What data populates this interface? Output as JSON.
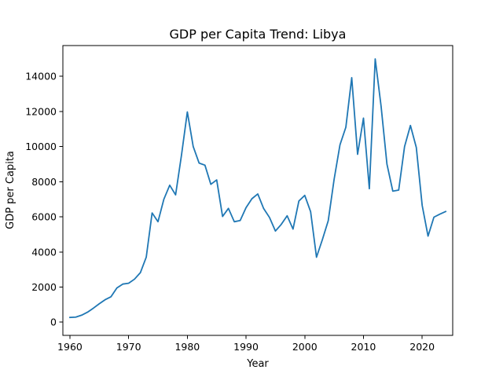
{
  "chart_data": {
    "type": "line",
    "title": "GDP per Capita Trend: Libya",
    "xlabel": "Year",
    "ylabel": "GDP per Capita",
    "xlim": [
      1958.8,
      2025.2
    ],
    "ylim": [
      -750,
      15750
    ],
    "xticks": [
      1960,
      1970,
      1980,
      1990,
      2000,
      2010,
      2020
    ],
    "yticks": [
      0,
      2000,
      4000,
      6000,
      8000,
      10000,
      12000,
      14000
    ],
    "grid": false,
    "color": "#1f77b4",
    "series": [
      {
        "x": [
          1960,
          1961,
          1962,
          1963,
          1964,
          1965,
          1966,
          1967,
          1968,
          1969,
          1970,
          1971,
          1972,
          1973,
          1974,
          1975,
          1976,
          1977,
          1978,
          1979,
          1980,
          1981,
          1982,
          1983,
          1984,
          1985,
          1986,
          1987,
          1988,
          1989,
          1990,
          1991,
          1992,
          1993,
          1994,
          1995,
          1996,
          1997,
          1998,
          1999,
          2000,
          2001,
          2002,
          2003,
          2004,
          2005,
          2006,
          2007,
          2008,
          2009,
          2010,
          2011,
          2012,
          2013,
          2014,
          2015,
          2016,
          2017,
          2018,
          2019,
          2020,
          2021,
          2022,
          2023,
          2024
        ],
        "values": [
          270,
          290,
          400,
          570,
          800,
          1050,
          1280,
          1450,
          1950,
          2170,
          2220,
          2450,
          2820,
          3700,
          6220,
          5720,
          7000,
          7800,
          7250,
          9500,
          11970,
          10000,
          9060,
          8940,
          7850,
          8100,
          6020,
          6480,
          5720,
          5790,
          6520,
          7030,
          7300,
          6470,
          5960,
          5190,
          5570,
          6060,
          5300,
          6900,
          7220,
          6290,
          3700,
          4700,
          5780,
          8130,
          10100,
          11100,
          13920,
          9560,
          11620,
          7600,
          14990,
          12300,
          9000,
          7460,
          7520,
          10000,
          11200,
          9950,
          6650,
          4900,
          5980,
          6150,
          6300
        ]
      }
    ]
  }
}
